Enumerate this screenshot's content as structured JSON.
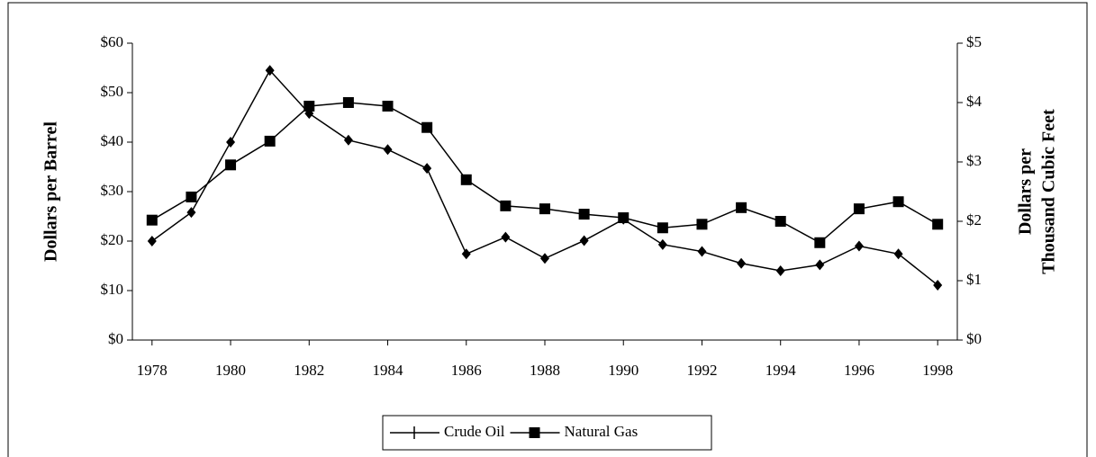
{
  "chart_data": {
    "type": "line",
    "x": [
      1978,
      1979,
      1980,
      1981,
      1982,
      1983,
      1984,
      1985,
      1986,
      1987,
      1988,
      1989,
      1990,
      1991,
      1992,
      1993,
      1994,
      1995,
      1996,
      1997,
      1998
    ],
    "xlim": [
      1977.5,
      1998.5
    ],
    "xticks": [
      1978,
      1980,
      1982,
      1984,
      1986,
      1988,
      1990,
      1992,
      1994,
      1996,
      1998
    ],
    "ylabel": "Dollars per Barrel",
    "y2label": [
      "Dollars per",
      "Thousand Cubic Feet"
    ],
    "ylim": [
      0,
      60
    ],
    "yticks": [
      {
        "value": 0,
        "label": "$0"
      },
      {
        "value": 10,
        "label": "$10"
      },
      {
        "value": 20,
        "label": "$20"
      },
      {
        "value": 30,
        "label": "$30"
      },
      {
        "value": 40,
        "label": "$40"
      },
      {
        "value": 50,
        "label": "$50"
      },
      {
        "value": 60,
        "label": "$60"
      }
    ],
    "y2lim": [
      0,
      5
    ],
    "y2ticks": [
      {
        "value": 0,
        "label": "$0"
      },
      {
        "value": 1,
        "label": "$1"
      },
      {
        "value": 2,
        "label": "$2"
      },
      {
        "value": 3,
        "label": "$3"
      },
      {
        "value": 4,
        "label": "$4"
      },
      {
        "value": 5,
        "label": "$5"
      }
    ],
    "legend": "bottom",
    "series": [
      {
        "name": "Crude Oil",
        "color": "#000000",
        "values": [
          20,
          25.8,
          40,
          54.5,
          45.8,
          40.4,
          38.5,
          34.7,
          17.4,
          20.8,
          16.5,
          20.1,
          24.4,
          19.3,
          17.9,
          15.5,
          14,
          15.2,
          19,
          17.4,
          11.1
        ]
      },
      {
        "name": "Natural Gas",
        "color": "#000000",
        "axis": "y2",
        "values": [
          2.02,
          2.41,
          2.95,
          3.35,
          3.94,
          4.0,
          3.94,
          3.58,
          2.7,
          2.26,
          2.21,
          2.12,
          2.06,
          1.89,
          1.95,
          2.23,
          2.0,
          1.64,
          2.21,
          2.33,
          1.95
        ]
      }
    ]
  }
}
